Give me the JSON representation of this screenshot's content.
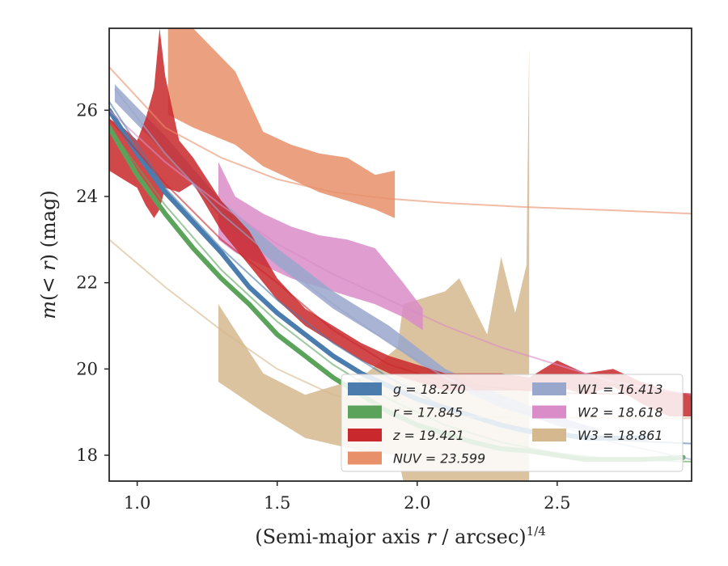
{
  "chart_data": {
    "type": "area",
    "xlabel": "(Semi-major axis r / arcsec)^1/4",
    "xlabel_parts": {
      "prefix": "(Semi-major axis ",
      "var": "r",
      "middle": " / arcsec)",
      "sup": "1/4"
    },
    "ylabel": "m(< r) (mag)",
    "ylabel_parts": {
      "m": "m",
      "open": "(",
      "lt": "< ",
      "r": "r",
      "close": ") (mag)"
    },
    "xlim": [
      0.9,
      2.98
    ],
    "ylim": [
      27.9,
      17.4
    ],
    "y_inverted": true,
    "xticks": [
      1.0,
      1.5,
      2.0,
      2.5
    ],
    "xtick_labels": [
      "1.0",
      "1.5",
      "2.0",
      "2.5"
    ],
    "yticks": [
      18,
      20,
      22,
      24,
      26
    ],
    "ytick_labels": [
      "18",
      "20",
      "22",
      "24",
      "26"
    ],
    "grid": false,
    "legend_position": "lower-right",
    "legend_columns": 2,
    "series": [
      {
        "name": "W3",
        "legend_label": "W3 = 18.861",
        "color": "#D6B88E",
        "band_x": [
          1.29,
          1.45,
          1.6,
          1.8,
          1.93,
          1.95,
          2.1,
          2.15,
          2.25,
          2.3,
          2.35,
          2.39,
          2.4
        ],
        "band_upper": [
          19.7,
          19.0,
          18.4,
          18.1,
          18.0,
          17.4,
          17.4,
          17.4,
          17.4,
          17.4,
          17.4,
          17.4,
          17.4
        ],
        "band_lower": [
          21.5,
          19.9,
          19.4,
          19.8,
          20.5,
          21.5,
          21.8,
          22.1,
          20.8,
          22.6,
          21.3,
          22.4,
          27.5
        ],
        "model_x": [
          0.9,
          1.1,
          1.3,
          1.5,
          1.7,
          1.9,
          2.1,
          2.3,
          2.5,
          2.7,
          2.98
        ],
        "model_y": [
          23.0,
          21.9,
          20.9,
          20.0,
          19.4,
          19.1,
          18.9,
          18.88,
          18.87,
          18.86,
          18.86
        ]
      },
      {
        "name": "NUV",
        "legend_label": "NUV = 23.599",
        "color": "#E8906A",
        "band_x": [
          1.11,
          1.2,
          1.35,
          1.45,
          1.55,
          1.65,
          1.75,
          1.85,
          1.92
        ],
        "band_upper": [
          25.9,
          25.6,
          25.2,
          24.7,
          24.4,
          24.1,
          23.9,
          23.7,
          23.5
        ],
        "band_lower": [
          27.9,
          27.9,
          26.9,
          25.5,
          25.2,
          25.0,
          24.9,
          24.5,
          24.6
        ],
        "model_x": [
          0.9,
          1.1,
          1.3,
          1.5,
          1.7,
          1.9,
          2.1,
          2.4,
          2.7,
          2.98
        ],
        "model_y": [
          27.0,
          25.6,
          24.9,
          24.4,
          24.1,
          23.95,
          23.85,
          23.75,
          23.68,
          23.6
        ]
      },
      {
        "name": "W2",
        "legend_label": "W2 = 18.618",
        "color": "#D98CC8",
        "band_x": [
          1.29,
          1.35,
          1.45,
          1.55,
          1.65,
          1.75,
          1.85,
          1.95,
          2.02
        ],
        "band_upper": [
          23.0,
          22.7,
          22.4,
          22.1,
          21.9,
          21.7,
          21.5,
          21.2,
          20.9
        ],
        "band_lower": [
          24.8,
          24.0,
          23.6,
          23.3,
          23.1,
          23.0,
          22.8,
          22.0,
          21.4
        ],
        "model_x": [
          0.9,
          1.1,
          1.3,
          1.5,
          1.7,
          1.9,
          2.1,
          2.3,
          2.5,
          2.7,
          2.98
        ],
        "model_y": [
          26.0,
          24.8,
          23.8,
          22.9,
          22.2,
          21.6,
          21.0,
          20.5,
          20.1,
          19.7,
          19.4
        ]
      },
      {
        "name": "W1",
        "legend_label": "W1 = 16.413",
        "color": "#9AA7CC",
        "band_x": [
          0.92,
          1.1,
          1.3,
          1.5,
          1.7,
          1.9,
          2.1,
          2.3,
          2.5,
          2.65
        ],
        "band_upper": [
          26.2,
          25.0,
          23.5,
          22.4,
          21.4,
          20.6,
          19.7,
          19.1,
          18.7,
          18.5
        ],
        "band_lower": [
          26.6,
          25.4,
          23.9,
          22.8,
          21.8,
          21.0,
          20.0,
          19.4,
          18.9,
          18.6
        ],
        "model_x": [
          0.92,
          1.1,
          1.3,
          1.5,
          1.7,
          1.9,
          2.1,
          2.3,
          2.5,
          2.7,
          2.98
        ],
        "model_y": [
          26.5,
          25.0,
          23.6,
          22.5,
          21.5,
          20.6,
          19.8,
          19.2,
          18.7,
          18.3,
          17.9
        ]
      },
      {
        "name": "z",
        "legend_label": "z = 19.421",
        "color": "#C9282C",
        "band_x": [
          0.9,
          0.95,
          1.0,
          1.03,
          1.06,
          1.08,
          1.1,
          1.15,
          1.2,
          1.3,
          1.4,
          1.5,
          1.6,
          1.7,
          1.8,
          1.9,
          2.0,
          2.1,
          2.2,
          2.3,
          2.4,
          2.5,
          2.6,
          2.7,
          2.8,
          2.9,
          2.98
        ],
        "band_upper": [
          24.6,
          24.4,
          24.2,
          23.8,
          23.5,
          23.7,
          24.2,
          24.1,
          24.3,
          23.2,
          22.4,
          21.6,
          21.0,
          20.6,
          20.2,
          19.9,
          19.7,
          19.5,
          19.5,
          19.5,
          19.5,
          19.6,
          19.4,
          19.6,
          19.2,
          18.9,
          18.9
        ],
        "band_lower": [
          25.8,
          25.6,
          25.3,
          25.8,
          26.5,
          27.9,
          26.8,
          25.3,
          24.9,
          23.9,
          23.2,
          22.1,
          21.4,
          21.0,
          20.6,
          20.3,
          20.1,
          19.9,
          19.9,
          19.9,
          19.8,
          20.2,
          19.9,
          20.0,
          19.7,
          19.5,
          19.4
        ],
        "model_x": [
          0.9,
          1.1,
          1.3,
          1.5,
          1.7,
          1.9,
          2.1,
          2.3,
          2.5,
          2.7,
          2.98
        ],
        "model_y": [
          25.8,
          24.3,
          23.0,
          22.0,
          20.9,
          20.1,
          19.7,
          19.55,
          19.45,
          19.42,
          19.42
        ]
      },
      {
        "name": "g",
        "legend_label": "g = 18.270",
        "color": "#4A7DAE",
        "line_x": [
          0.9,
          1.0,
          1.1,
          1.2,
          1.3,
          1.4,
          1.5,
          1.6,
          1.7,
          1.8,
          1.9,
          2.0,
          2.1,
          2.2,
          2.3,
          2.4,
          2.5,
          2.6,
          2.7,
          2.82
        ],
        "line_y": [
          26.0,
          25.0,
          24.1,
          23.4,
          22.7,
          21.9,
          21.3,
          20.8,
          20.3,
          19.9,
          19.6,
          19.3,
          19.1,
          18.9,
          18.7,
          18.55,
          18.5,
          18.4,
          18.4,
          18.4
        ],
        "model_x": [
          0.9,
          1.1,
          1.3,
          1.5,
          1.7,
          1.9,
          2.1,
          2.3,
          2.5,
          2.7,
          2.98
        ],
        "model_y": [
          26.2,
          24.2,
          22.8,
          21.6,
          20.6,
          19.8,
          19.1,
          18.7,
          18.5,
          18.35,
          18.27
        ]
      },
      {
        "name": "r",
        "legend_label": "r = 17.845",
        "color": "#5BA35B",
        "line_x": [
          0.9,
          1.0,
          1.1,
          1.2,
          1.3,
          1.4,
          1.5,
          1.6,
          1.7,
          1.8,
          1.9,
          2.0,
          2.1,
          2.2,
          2.3,
          2.4,
          2.5,
          2.6,
          2.7,
          2.8,
          2.95
        ],
        "line_y": [
          25.6,
          24.5,
          23.6,
          22.8,
          22.1,
          21.5,
          20.8,
          20.3,
          19.8,
          19.4,
          19.0,
          18.7,
          18.5,
          18.3,
          18.15,
          18.1,
          18.0,
          17.9,
          17.9,
          17.9,
          17.95
        ],
        "model_x": [
          0.9,
          1.1,
          1.3,
          1.5,
          1.7,
          1.9,
          2.1,
          2.3,
          2.5,
          2.7,
          2.98
        ],
        "model_y": [
          25.6,
          23.8,
          22.3,
          21.1,
          20.1,
          19.3,
          18.7,
          18.3,
          18.05,
          17.9,
          17.85
        ]
      }
    ]
  }
}
